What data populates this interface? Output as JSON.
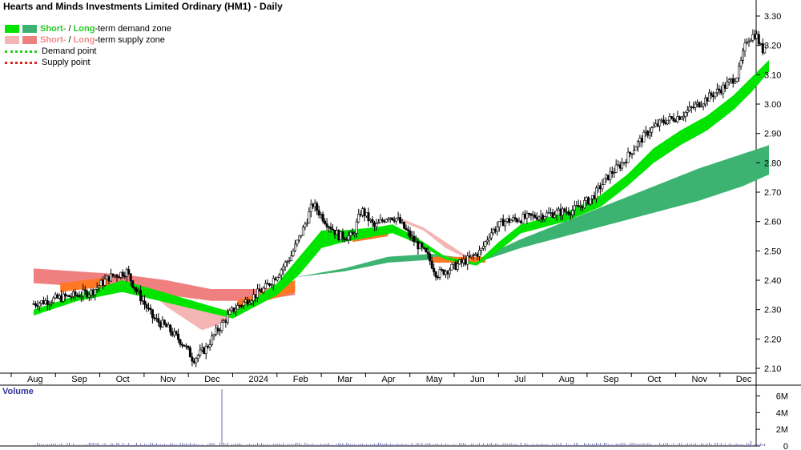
{
  "title": "Hearts and Minds Investments Limited Ordinary (HM1) - Daily",
  "legend": {
    "demand_zone": {
      "short": "Short-",
      "sep": " / ",
      "long": "Long",
      "suffix": "-term demand zone"
    },
    "supply_zone": {
      "short": "Short-",
      "sep": " / ",
      "long": "Long",
      "suffix": "-term supply zone"
    },
    "demand_point": "Demand point",
    "supply_point": "Supply point"
  },
  "colors": {
    "short_demand": "#00e400",
    "long_demand": "#3cb371",
    "short_supply": "#f5b5b5",
    "long_supply": "#f08080",
    "overlap_orange": "#ff7722",
    "demand_point": "#22cc22",
    "supply_point": "#dd2222",
    "volume": "#6a6aaa"
  },
  "chart_data": [
    {
      "type": "candlestick",
      "title": "Hearts and Minds Investments Limited Ordinary (HM1) - Daily",
      "x_ticks": [
        "Aug",
        "Sep",
        "Oct",
        "Nov",
        "Dec",
        "2024",
        "Feb",
        "Mar",
        "Apr",
        "May",
        "Jun",
        "Jul",
        "Aug",
        "Sep",
        "Oct",
        "Nov",
        "Dec"
      ],
      "y_ticks": [
        "3.30",
        "3.20",
        "3.10",
        "3.00",
        "2.90",
        "2.80",
        "2.70",
        "2.60",
        "2.50",
        "2.40",
        "2.30",
        "2.20",
        "2.10"
      ],
      "ylim": [
        2.08,
        3.32
      ],
      "x_range_months": [
        0,
        16.6
      ],
      "price_anchors": [
        [
          0,
          2.32
        ],
        [
          0.6,
          2.34
        ],
        [
          1.0,
          2.35
        ],
        [
          1.3,
          2.36
        ],
        [
          1.7,
          2.41
        ],
        [
          2.1,
          2.43
        ],
        [
          2.3,
          2.37
        ],
        [
          2.7,
          2.27
        ],
        [
          3.0,
          2.24
        ],
        [
          3.4,
          2.18
        ],
        [
          3.6,
          2.13
        ],
        [
          3.9,
          2.17
        ],
        [
          4.1,
          2.22
        ],
        [
          4.5,
          2.3
        ],
        [
          4.9,
          2.34
        ],
        [
          5.2,
          2.37
        ],
        [
          5.5,
          2.42
        ],
        [
          5.8,
          2.48
        ],
        [
          6.1,
          2.58
        ],
        [
          6.3,
          2.66
        ],
        [
          6.6,
          2.6
        ],
        [
          6.9,
          2.55
        ],
        [
          7.2,
          2.55
        ],
        [
          7.4,
          2.64
        ],
        [
          7.7,
          2.58
        ],
        [
          8.0,
          2.62
        ],
        [
          8.2,
          2.61
        ],
        [
          8.5,
          2.55
        ],
        [
          8.9,
          2.48
        ],
        [
          9.1,
          2.42
        ],
        [
          9.4,
          2.44
        ],
        [
          9.8,
          2.47
        ],
        [
          10.1,
          2.5
        ],
        [
          10.3,
          2.56
        ],
        [
          10.6,
          2.6
        ],
        [
          11.0,
          2.61
        ],
        [
          11.4,
          2.62
        ],
        [
          11.8,
          2.63
        ],
        [
          12.2,
          2.64
        ],
        [
          12.6,
          2.68
        ],
        [
          13.0,
          2.76
        ],
        [
          13.3,
          2.8
        ],
        [
          13.6,
          2.86
        ],
        [
          13.9,
          2.91
        ],
        [
          14.2,
          2.94
        ],
        [
          14.6,
          2.96
        ],
        [
          15.0,
          3.0
        ],
        [
          15.3,
          3.03
        ],
        [
          15.6,
          3.06
        ],
        [
          15.9,
          3.1
        ],
        [
          16.1,
          3.22
        ],
        [
          16.3,
          3.24
        ],
        [
          16.45,
          3.18
        ],
        [
          16.6,
          3.25
        ]
      ],
      "short_demand_zone": {
        "start": 0,
        "end": 16.6,
        "lower": [
          [
            0,
            2.28
          ],
          [
            1.0,
            2.33
          ],
          [
            2.0,
            2.36
          ],
          [
            4.5,
            2.27
          ],
          [
            5.5,
            2.35
          ],
          [
            6.0,
            2.42
          ],
          [
            6.5,
            2.51
          ],
          [
            7.0,
            2.53
          ],
          [
            7.7,
            2.55
          ],
          [
            8.1,
            2.56
          ],
          [
            8.6,
            2.53
          ],
          [
            9.3,
            2.47
          ],
          [
            10.0,
            2.45
          ],
          [
            10.5,
            2.5
          ],
          [
            11.0,
            2.56
          ],
          [
            12.0,
            2.6
          ],
          [
            12.8,
            2.65
          ],
          [
            13.4,
            2.72
          ],
          [
            14.0,
            2.8
          ],
          [
            14.6,
            2.86
          ],
          [
            15.2,
            2.91
          ],
          [
            15.8,
            2.98
          ],
          [
            16.2,
            3.04
          ],
          [
            16.6,
            3.11
          ]
        ],
        "upper": [
          [
            0,
            2.3
          ],
          [
            1.0,
            2.35
          ],
          [
            2.0,
            2.4
          ],
          [
            4.5,
            2.29
          ],
          [
            5.5,
            2.39
          ],
          [
            6.0,
            2.48
          ],
          [
            6.5,
            2.57
          ],
          [
            7.0,
            2.57
          ],
          [
            7.7,
            2.58
          ],
          [
            8.1,
            2.59
          ],
          [
            8.6,
            2.55
          ],
          [
            9.3,
            2.48
          ],
          [
            10.0,
            2.46
          ],
          [
            10.5,
            2.53
          ],
          [
            11.0,
            2.59
          ],
          [
            12.0,
            2.63
          ],
          [
            12.8,
            2.69
          ],
          [
            13.4,
            2.76
          ],
          [
            14.0,
            2.85
          ],
          [
            14.6,
            2.91
          ],
          [
            15.2,
            2.96
          ],
          [
            15.8,
            3.03
          ],
          [
            16.2,
            3.09
          ],
          [
            16.6,
            3.15
          ]
        ]
      },
      "long_demand_zone": {
        "lower": [
          [
            5.9,
            2.41
          ],
          [
            7.0,
            2.43
          ],
          [
            8.0,
            2.46
          ],
          [
            9.0,
            2.47
          ],
          [
            10.0,
            2.46
          ],
          [
            11.0,
            2.51
          ],
          [
            12.0,
            2.55
          ],
          [
            13.0,
            2.59
          ],
          [
            14.0,
            2.63
          ],
          [
            15.0,
            2.67
          ],
          [
            16.0,
            2.72
          ],
          [
            16.6,
            2.76
          ]
        ],
        "upper": [
          [
            5.9,
            2.41
          ],
          [
            7.0,
            2.44
          ],
          [
            8.0,
            2.48
          ],
          [
            9.0,
            2.49
          ],
          [
            10.0,
            2.47
          ],
          [
            11.0,
            2.54
          ],
          [
            12.0,
            2.6
          ],
          [
            13.0,
            2.66
          ],
          [
            14.0,
            2.72
          ],
          [
            15.0,
            2.78
          ],
          [
            16.0,
            2.83
          ],
          [
            16.6,
            2.86
          ]
        ]
      },
      "short_supply_zone": {
        "lower": [
          [
            2.6,
            2.36
          ],
          [
            3.0,
            2.31
          ],
          [
            3.4,
            2.27
          ],
          [
            3.8,
            2.23
          ],
          [
            4.2,
            2.25
          ],
          [
            4.5,
            2.28
          ],
          [
            8.3,
            2.6
          ],
          [
            8.8,
            2.57
          ],
          [
            9.3,
            2.51
          ],
          [
            9.7,
            2.48
          ],
          [
            10.0,
            2.46
          ]
        ],
        "upper": [
          [
            2.6,
            2.37
          ],
          [
            3.0,
            2.33
          ],
          [
            3.4,
            2.31
          ],
          [
            3.8,
            2.3
          ],
          [
            4.2,
            2.3
          ],
          [
            4.5,
            2.3
          ],
          [
            8.3,
            2.61
          ],
          [
            8.8,
            2.58
          ],
          [
            9.3,
            2.53
          ],
          [
            9.7,
            2.49
          ],
          [
            10.0,
            2.47
          ]
        ]
      },
      "long_supply_zone": {
        "lower": [
          [
            0,
            2.39
          ],
          [
            1.0,
            2.38
          ],
          [
            2.0,
            2.37
          ],
          [
            3.0,
            2.35
          ],
          [
            4.0,
            2.33
          ],
          [
            5.0,
            2.33
          ],
          [
            5.9,
            2.35
          ]
        ],
        "upper": [
          [
            0,
            2.44
          ],
          [
            1.0,
            2.43
          ],
          [
            2.0,
            2.42
          ],
          [
            3.0,
            2.4
          ],
          [
            4.0,
            2.37
          ],
          [
            5.0,
            2.37
          ],
          [
            5.9,
            2.38
          ]
        ]
      }
    },
    {
      "type": "bar",
      "title": "Volume",
      "y_ticks": [
        "6M",
        "4M",
        "2M",
        "0"
      ],
      "ylim": [
        0,
        7000000
      ],
      "spikes": [
        [
          4.25,
          6800000
        ],
        [
          16.2,
          600000
        ]
      ],
      "baseline_volume": 250000
    }
  ]
}
